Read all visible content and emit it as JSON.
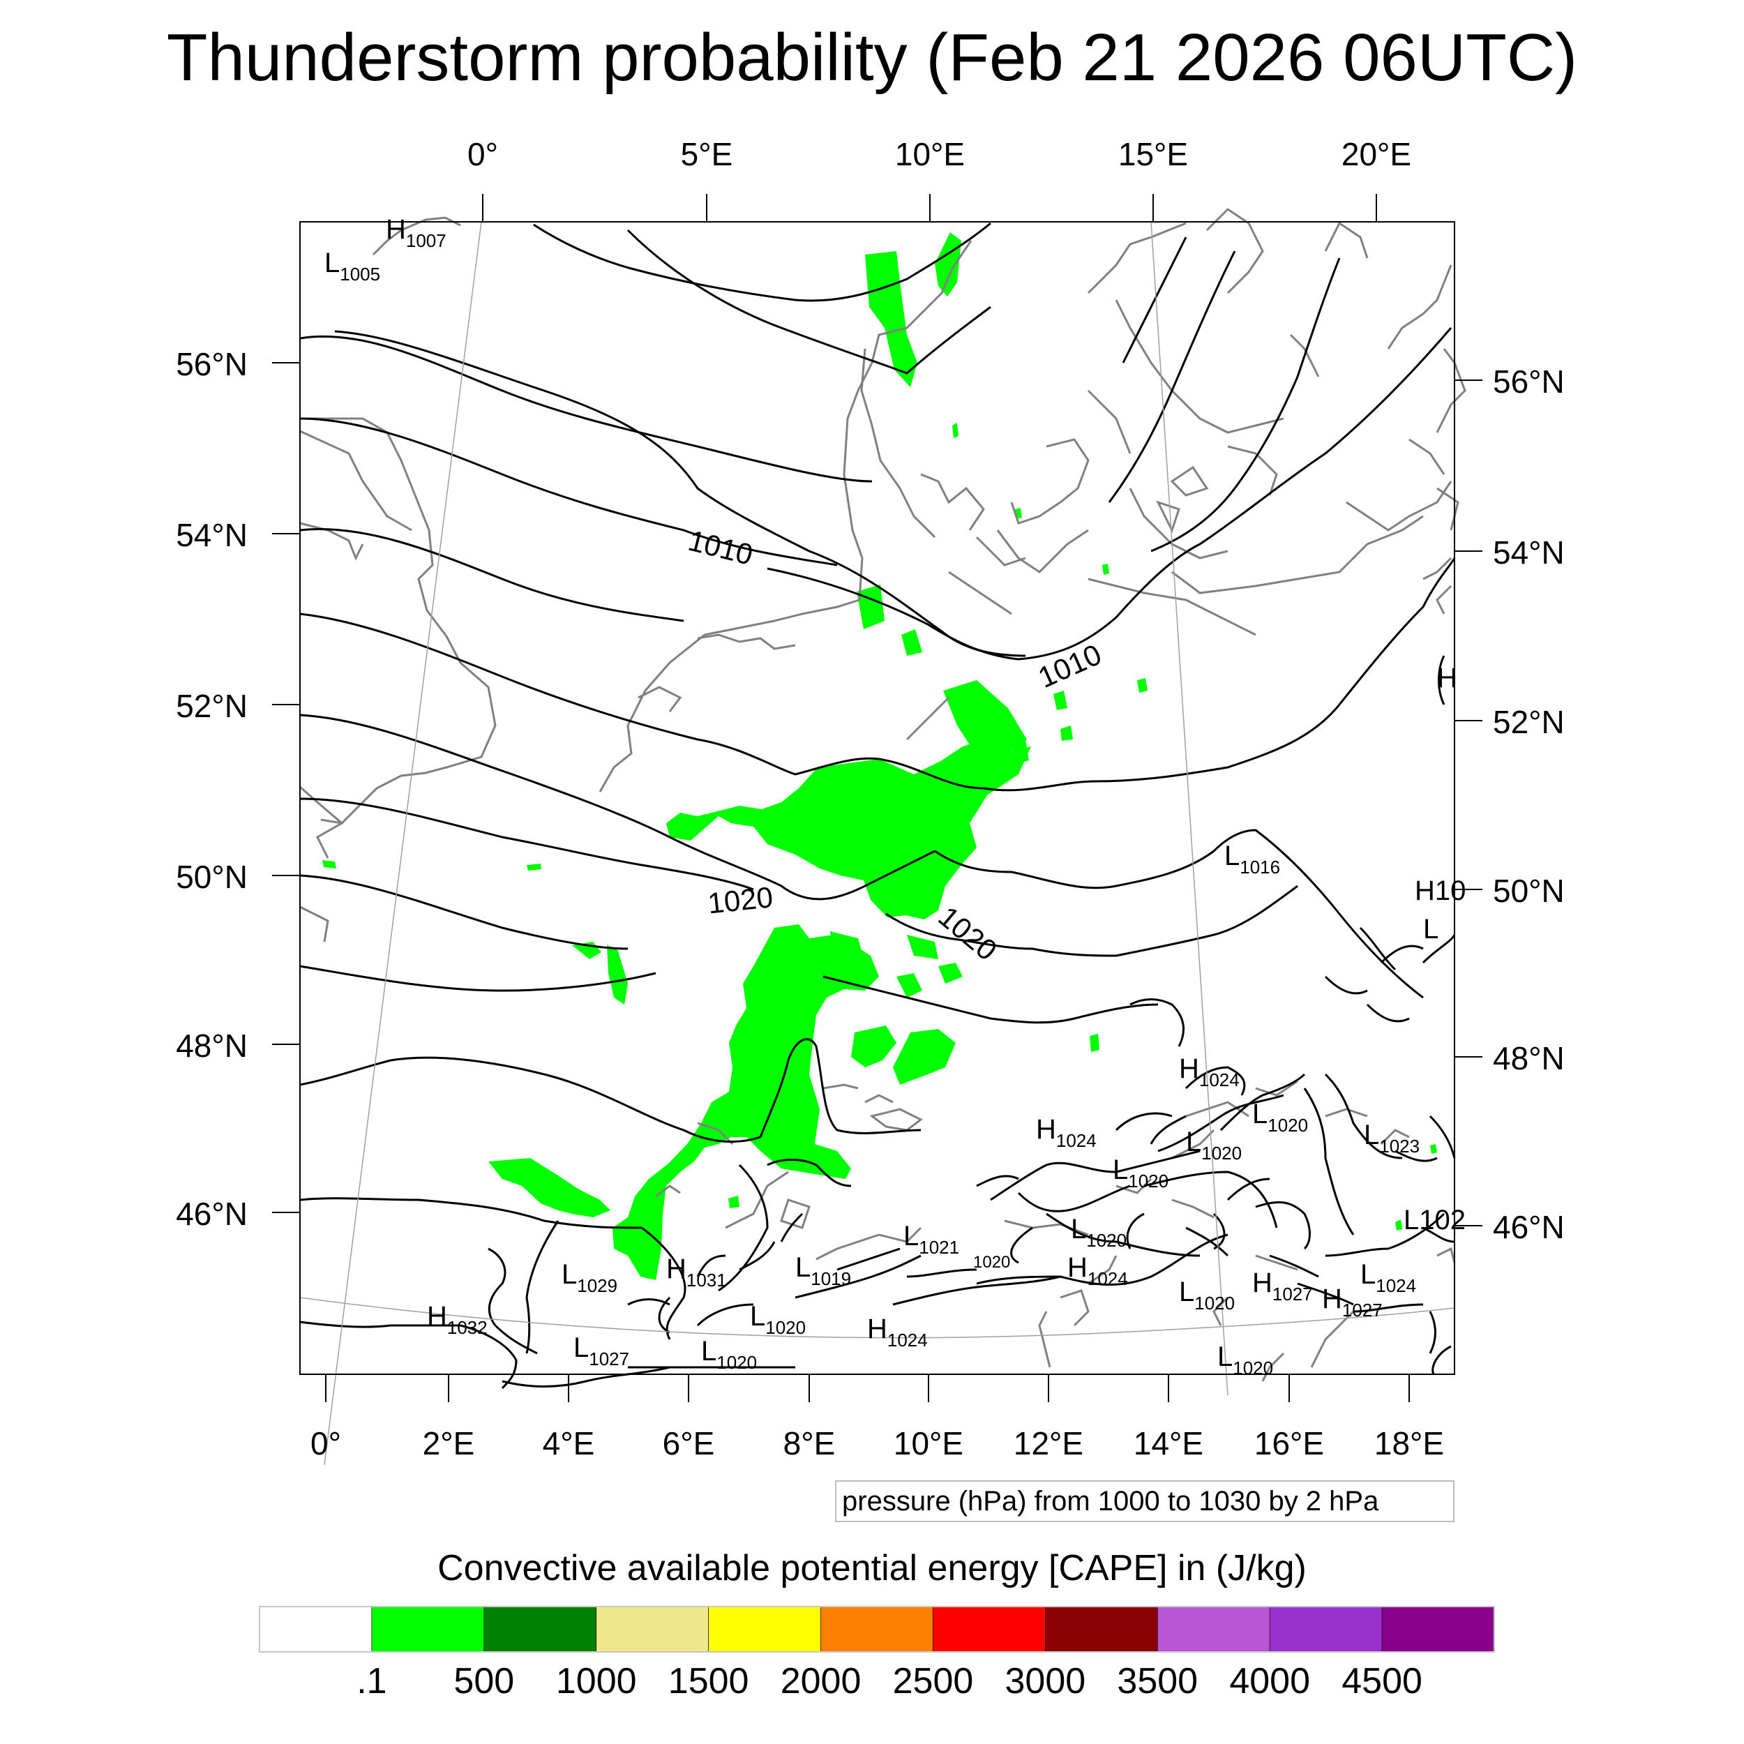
{
  "title": "Thunderstorm probability (Feb 21 2026 06UTC)",
  "axes": {
    "top_lon": [
      "0°",
      "5°E",
      "10°E",
      "15°E",
      "20°E"
    ],
    "bottom_lon": [
      "0°",
      "2°E",
      "4°E",
      "6°E",
      "8°E",
      "10°E",
      "12°E",
      "14°E",
      "16°E",
      "18°E"
    ],
    "left_lat": [
      "56°N",
      "54°N",
      "52°N",
      "50°N",
      "48°N",
      "46°N"
    ],
    "right_lat": [
      "56°N",
      "54°N",
      "52°N",
      "50°N",
      "48°N",
      "46°N"
    ]
  },
  "isobar_labels": [
    "1010",
    "1010",
    "1020",
    "1020"
  ],
  "pressure_centers": [
    {
      "type": "H",
      "value": "1007"
    },
    {
      "type": "L",
      "value": "1005"
    },
    {
      "type": "L",
      "value": "1016"
    },
    {
      "type": "H",
      "value": "1024"
    },
    {
      "type": "H",
      "value": "1024"
    },
    {
      "type": "L",
      "value": "1020"
    },
    {
      "type": "L",
      "value": "1020"
    },
    {
      "type": "L",
      "value": "1020"
    },
    {
      "type": "L",
      "value": "1023"
    },
    {
      "type": "L",
      "value": "1029"
    },
    {
      "type": "H",
      "value": "1031"
    },
    {
      "type": "L",
      "value": "1019"
    },
    {
      "type": "L",
      "value": "1021"
    },
    {
      "type": "L",
      "value": "1020"
    },
    {
      "type": "H",
      "value": "1024"
    },
    {
      "type": "L",
      "value": "1020"
    },
    {
      "type": "H",
      "value": "1027"
    },
    {
      "type": "H",
      "value": "1027"
    },
    {
      "type": "L",
      "value": "1024"
    },
    {
      "type": "H",
      "value": "1032"
    },
    {
      "type": "L",
      "value": "1027"
    },
    {
      "type": "L",
      "value": "1020"
    },
    {
      "type": "L",
      "value": "1020"
    },
    {
      "type": "H",
      "value": "1024"
    },
    {
      "type": "L",
      "value": "1020"
    }
  ],
  "edge_fragments": [
    "H",
    "H10",
    "L",
    "L102",
    "1020"
  ],
  "contour_note": "pressure (hPa) from 1000 to 1030 by 2 hPa",
  "colorbar": {
    "title": "Convective available potential energy [CAPE] in (J/kg)",
    "colors": [
      "#ffffff",
      "#00ff00",
      "#008000",
      "#f0e68c",
      "#ffff00",
      "#ff8000",
      "#ff0000",
      "#8b0000",
      "#ba55d3",
      "#9932cc",
      "#8b008b"
    ],
    "labels": [
      ".1",
      "500",
      "1000",
      "1500",
      "2000",
      "2500",
      "3000",
      "3500",
      "4000",
      "4500"
    ]
  },
  "cape_field_color": "#00ff00"
}
